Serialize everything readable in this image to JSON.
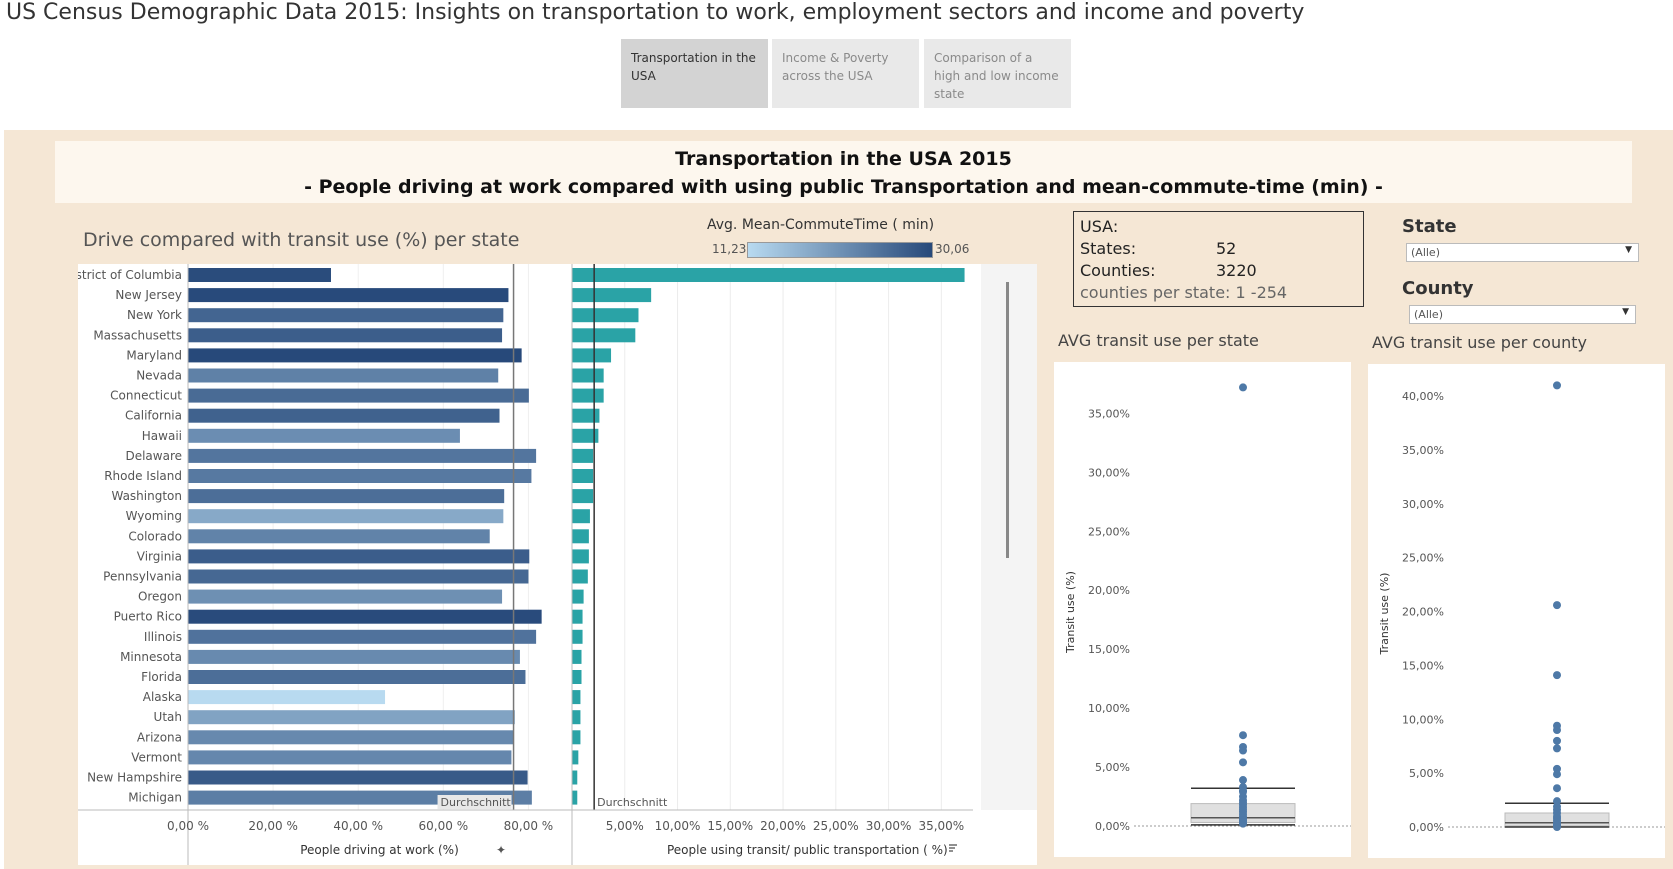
{
  "page": {
    "title": "US Census Demographic Data 2015: Insights on transportation to work, employment sectors and income and poverty"
  },
  "nav": {
    "tabs": [
      {
        "label": "Transportation in the USA",
        "active": true
      },
      {
        "label": "Income & Poverty across the USA",
        "active": false
      },
      {
        "label": "Comparison of a high and low income state",
        "active": false
      }
    ]
  },
  "banner": {
    "line1": "Transportation in the USA 2015",
    "line2": "- People driving at work compared with using public Transportation and mean-commute-time (min) -"
  },
  "main_chart_title": "Drive compared with transit use (%) per state",
  "legend": {
    "title": "Avg. Mean-CommuteTime ( min)",
    "min": "11,23",
    "max": "30,06",
    "color_low": "#b8daf0",
    "color_high": "#27497a"
  },
  "usa_box": {
    "title": "USA:",
    "states_label": "States:",
    "states_value": "52",
    "counties_label": "Counties:",
    "counties_value": "3220",
    "range_text": "counties per state: 1 -254"
  },
  "filters": {
    "state_label": "State",
    "state_value": "(Alle)",
    "county_label": "County",
    "county_value": "(Alle)"
  },
  "chart_data": [
    {
      "type": "bar",
      "title": "Drive compared with transit use (%) per state",
      "categories": [
        "District of Columbia",
        "New Jersey",
        "New York",
        "Massachusetts",
        "Maryland",
        "Nevada",
        "Connecticut",
        "California",
        "Hawaii",
        "Delaware",
        "Rhode Island",
        "Washington",
        "Wyoming",
        "Colorado",
        "Virginia",
        "Pennsylvania",
        "Oregon",
        "Puerto Rico",
        "Illinois",
        "Minnesota",
        "Florida",
        "Alaska",
        "Utah",
        "Arizona",
        "Vermont",
        "New Hampshire",
        "Michigan"
      ],
      "series": [
        {
          "name": "People driving at work (%)",
          "values": [
            33.6,
            75.3,
            74.1,
            73.8,
            78.4,
            72.9,
            80.1,
            73.2,
            63.9,
            81.8,
            80.7,
            74.3,
            74.1,
            70.9,
            80.2,
            80.0,
            73.8,
            83.1,
            81.8,
            78.0,
            79.3,
            46.3,
            76.8,
            76.6,
            76.0,
            79.8,
            80.8
          ]
        },
        {
          "name": "People using transit/ public transportation ( %)",
          "values": [
            37.2,
            7.5,
            6.3,
            6.0,
            3.7,
            3.0,
            3.0,
            2.6,
            2.5,
            2.0,
            2.0,
            2.0,
            1.7,
            1.6,
            1.6,
            1.5,
            1.1,
            1.0,
            1.0,
            0.9,
            0.9,
            0.8,
            0.8,
            0.8,
            0.6,
            0.5,
            0.5
          ]
        },
        {
          "name": "Avg. Mean-CommuteTime ( min)",
          "values": [
            29.7,
            29.9,
            26.4,
            27.3,
            30.1,
            22.8,
            25.7,
            26.8,
            21.2,
            24.3,
            23.8,
            25.3,
            17.6,
            22.5,
            27.4,
            26.0,
            20.9,
            29.8,
            24.7,
            21.6,
            25.3,
            11.2,
            18.4,
            21.8,
            22.0,
            27.8,
            23.2
          ]
        }
      ],
      "averages": {
        "drive": 76.5,
        "transit": 2.1,
        "label": "Durchschnitt"
      },
      "x1label": "People driving at work (%)",
      "x1ticks": [
        "0,00 %",
        "20,00 %",
        "40,00 %",
        "60,00 %",
        "80,00 %"
      ],
      "x1lim": [
        0,
        90
      ],
      "x2label": "People using transit/ public transportation ( %)",
      "x2ticks": [
        "5,00%",
        "10,00%",
        "15,00%",
        "20,00%",
        "25,00%",
        "30,00%",
        "35,00%"
      ],
      "x2lim": [
        0,
        38
      ]
    },
    {
      "type": "scatter",
      "title": "AVG transit use per state",
      "ylabel": "Transit use (%)",
      "yticks": [
        "0,00%",
        "5,00%",
        "10,00%",
        "15,00%",
        "20,00%",
        "25,00%",
        "30,00%",
        "35,00%"
      ],
      "ylim": [
        0,
        38
      ],
      "values": [
        37.2,
        7.7,
        6.7,
        6.4,
        5.4,
        3.9,
        3.3,
        3.0,
        2.9,
        2.5,
        2.2,
        2.0,
        1.8,
        1.6,
        1.4,
        1.2,
        1.0,
        0.8,
        0.6,
        0.5,
        0.4,
        0.3,
        0.2
      ],
      "box": {
        "q1": 0.3,
        "median": 0.7,
        "q3": 1.9,
        "whisker_high": 3.2,
        "whisker_low": 0.1
      }
    },
    {
      "type": "scatter",
      "title": "AVG transit use per county",
      "ylabel": "Transit use (%)",
      "yticks": [
        "0,00%",
        "5,00%",
        "10,00%",
        "15,00%",
        "20,00%",
        "25,00%",
        "30,00%",
        "35,00%",
        "40,00%"
      ],
      "ylim": [
        0,
        41.5
      ],
      "values": [
        41.0,
        20.6,
        14.1,
        9.4,
        9.0,
        8.0,
        7.3,
        5.4,
        4.9,
        3.6,
        2.4,
        1.9,
        1.6,
        1.3,
        1.0,
        0.8,
        0.6,
        0.4,
        0.2,
        0.1,
        0.0
      ],
      "box": {
        "q1": 0.1,
        "median": 0.4,
        "q3": 1.3,
        "whisker_high": 2.2,
        "whisker_low": 0.0
      }
    }
  ]
}
